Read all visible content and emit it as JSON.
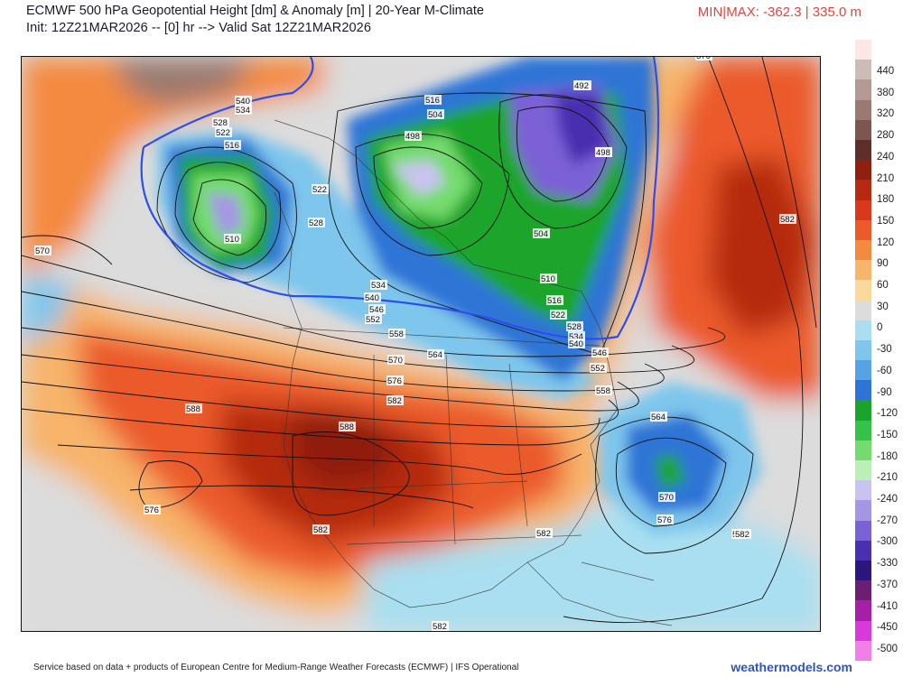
{
  "header": {
    "title": "ECMWF 500 hPa Geopotential Height [dm] & Anomaly [m] | 20-Year M-Climate",
    "subtitle": "Init: 12Z21MAR2026 -- [0] hr --> Valid Sat 12Z21MAR2026",
    "minmax": "MIN|MAX: -362.3 | 335.0 m"
  },
  "colorbar": {
    "labels": [
      "440",
      "380",
      "320",
      "280",
      "240",
      "210",
      "180",
      "150",
      "120",
      "90",
      "60",
      "30",
      "0",
      "-30",
      "-60",
      "-90",
      "-120",
      "-150",
      "-180",
      "-210",
      "-240",
      "-270",
      "-300",
      "-330",
      "-370",
      "-410",
      "-450",
      "-500"
    ],
    "colors": [
      "#fde7e6",
      "#cbbcb7",
      "#b49a92",
      "#9a7a70",
      "#7b5750",
      "#5e2f28",
      "#8f1f0f",
      "#b52a10",
      "#d8391c",
      "#eb5a2b",
      "#f48a3f",
      "#f7b46a",
      "#fad99b",
      "#dcdcdc",
      "#a9dff0",
      "#7ec6ec",
      "#55a3e4",
      "#2e74d6",
      "#1aa52a",
      "#35c24a",
      "#74dc6e",
      "#bcefb6",
      "#c9c3ef",
      "#a596e4",
      "#7b61d6",
      "#4a2fb0",
      "#2a167c",
      "#6b1e72",
      "#a61fa6",
      "#d73ad8",
      "#f07fe8"
    ]
  },
  "map": {
    "contour_labels": [
      "540",
      "534",
      "528",
      "522",
      "516",
      "510",
      "522",
      "528",
      "534",
      "540",
      "546",
      "552",
      "558",
      "564",
      "570",
      "576",
      "582",
      "588",
      "516",
      "504",
      "498",
      "492",
      "498",
      "504",
      "510",
      "516",
      "522",
      "528",
      "534",
      "540",
      "546",
      "552",
      "558",
      "564",
      "570",
      "576",
      "582",
      "588",
      "570",
      "576",
      "582",
      "582",
      "582",
      "570",
      "582",
      "582",
      "582",
      "582",
      "492",
      "498"
    ]
  },
  "footer": {
    "credit": "Service based on data + products of European Centre for Medium-Range Weather Forecasts (ECMWF) | IFS Operational",
    "brand": "weathermodels.com"
  }
}
